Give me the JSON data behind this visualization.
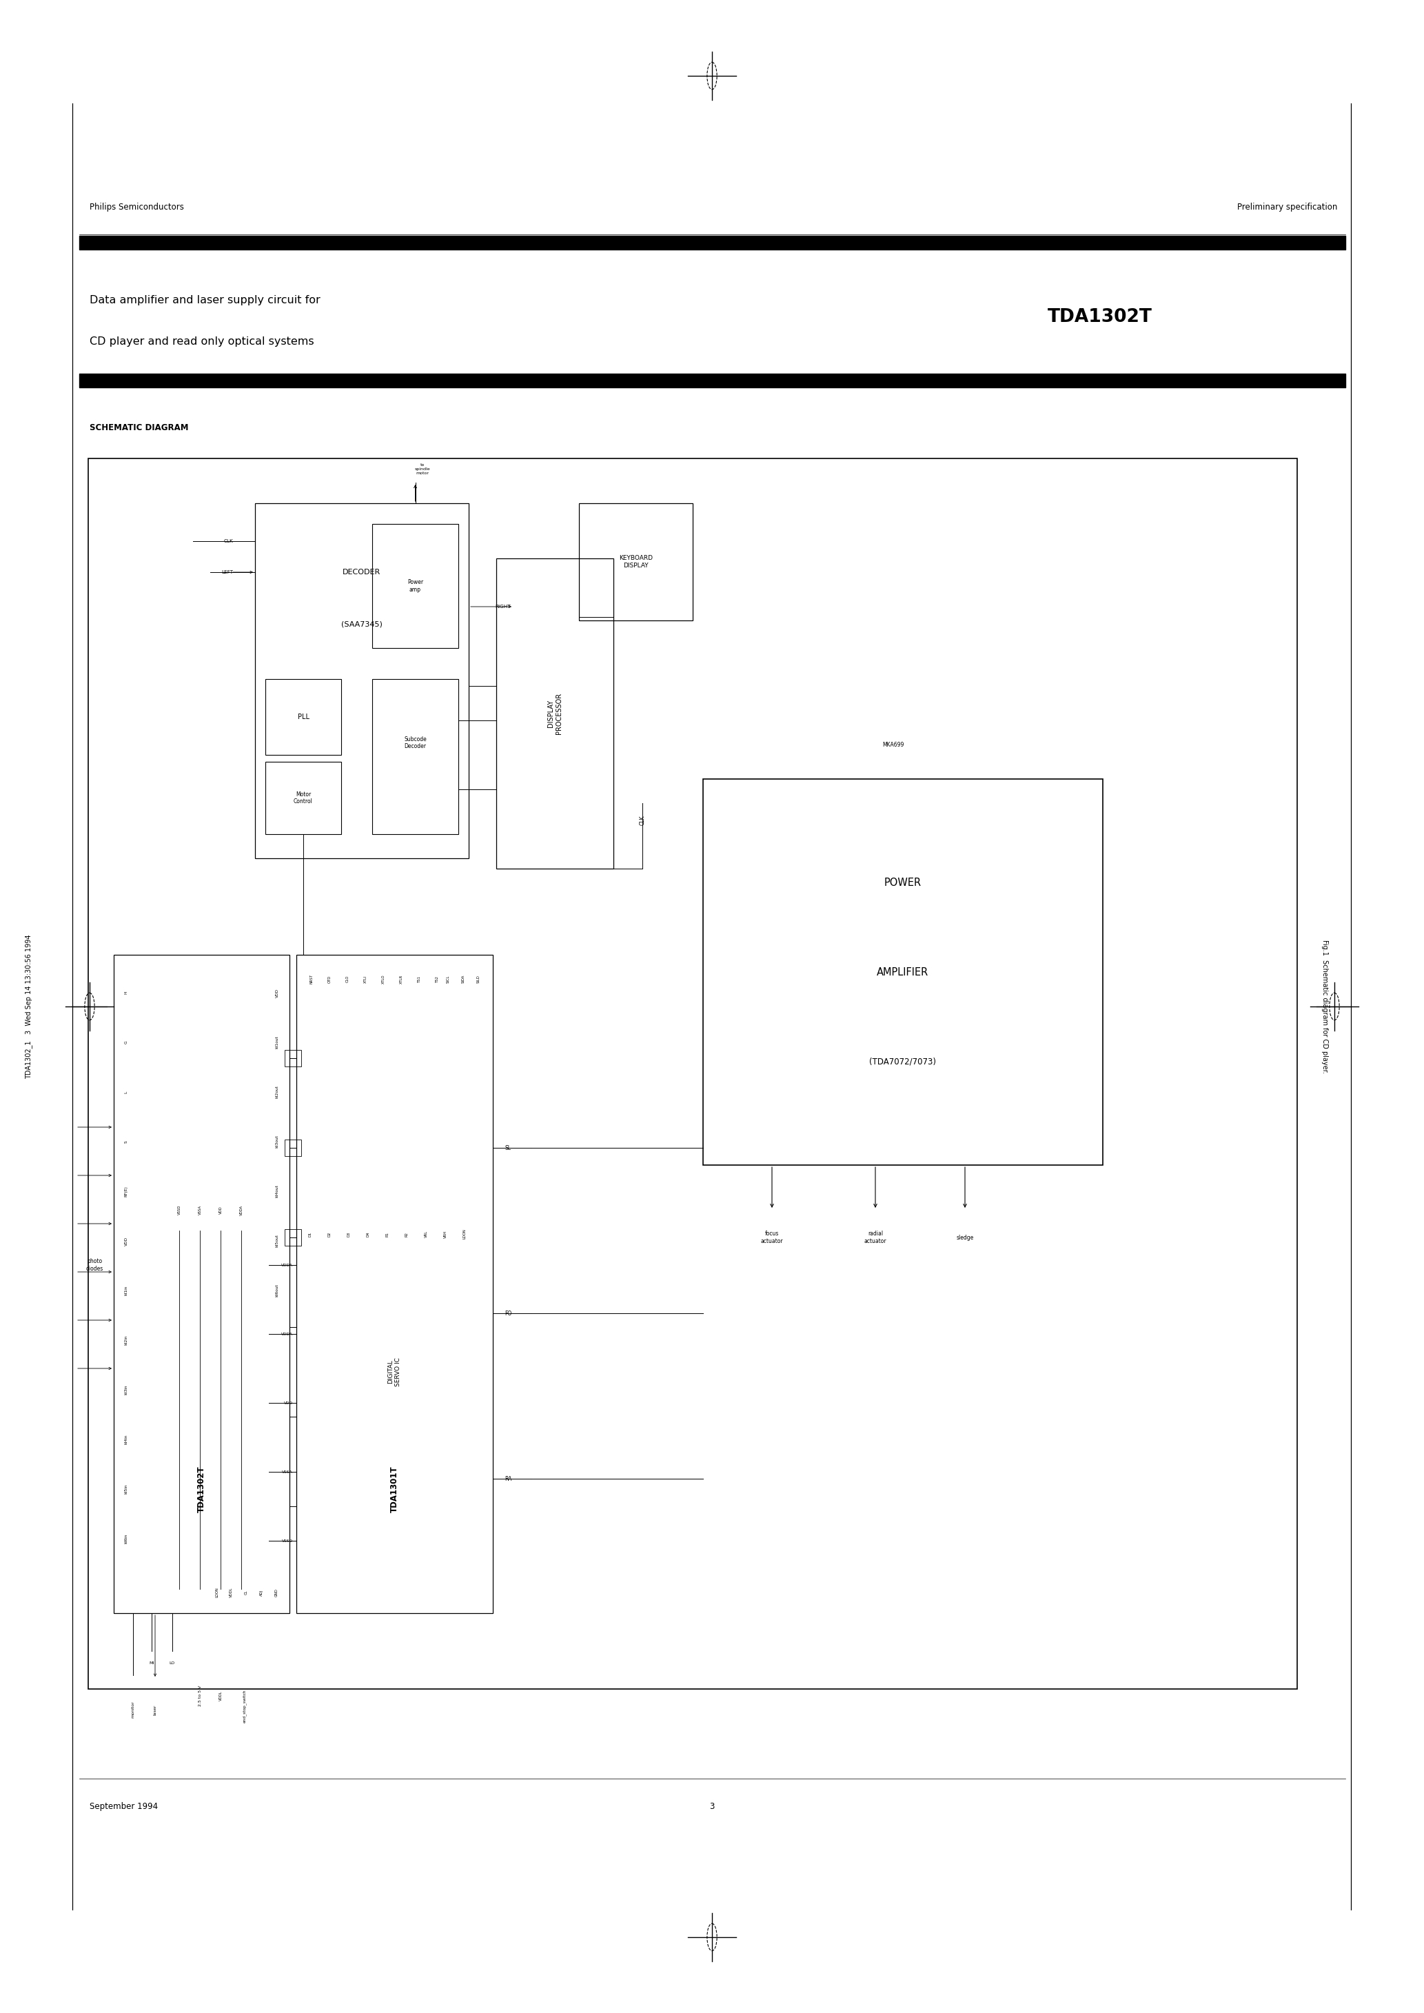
{
  "page_width": 20.66,
  "page_height": 29.2,
  "bg_color": "#ffffff",
  "header_left": "Philips Semiconductors",
  "header_right": "Preliminary specification",
  "title_line1": "Data amplifier and laser supply circuit for",
  "title_line2": "CD player and read only optical systems",
  "title_right": "TDA1302T",
  "section_label": "SCHEMATIC DIAGRAM",
  "footer_left": "September 1994",
  "footer_center": "3",
  "side_text": "TDA1302_1   3  Wed Sep 14 13:30:56 1994",
  "fig_caption": "Fig.1  Schematic diagram for CD player.",
  "diagram_note": "MKA699"
}
